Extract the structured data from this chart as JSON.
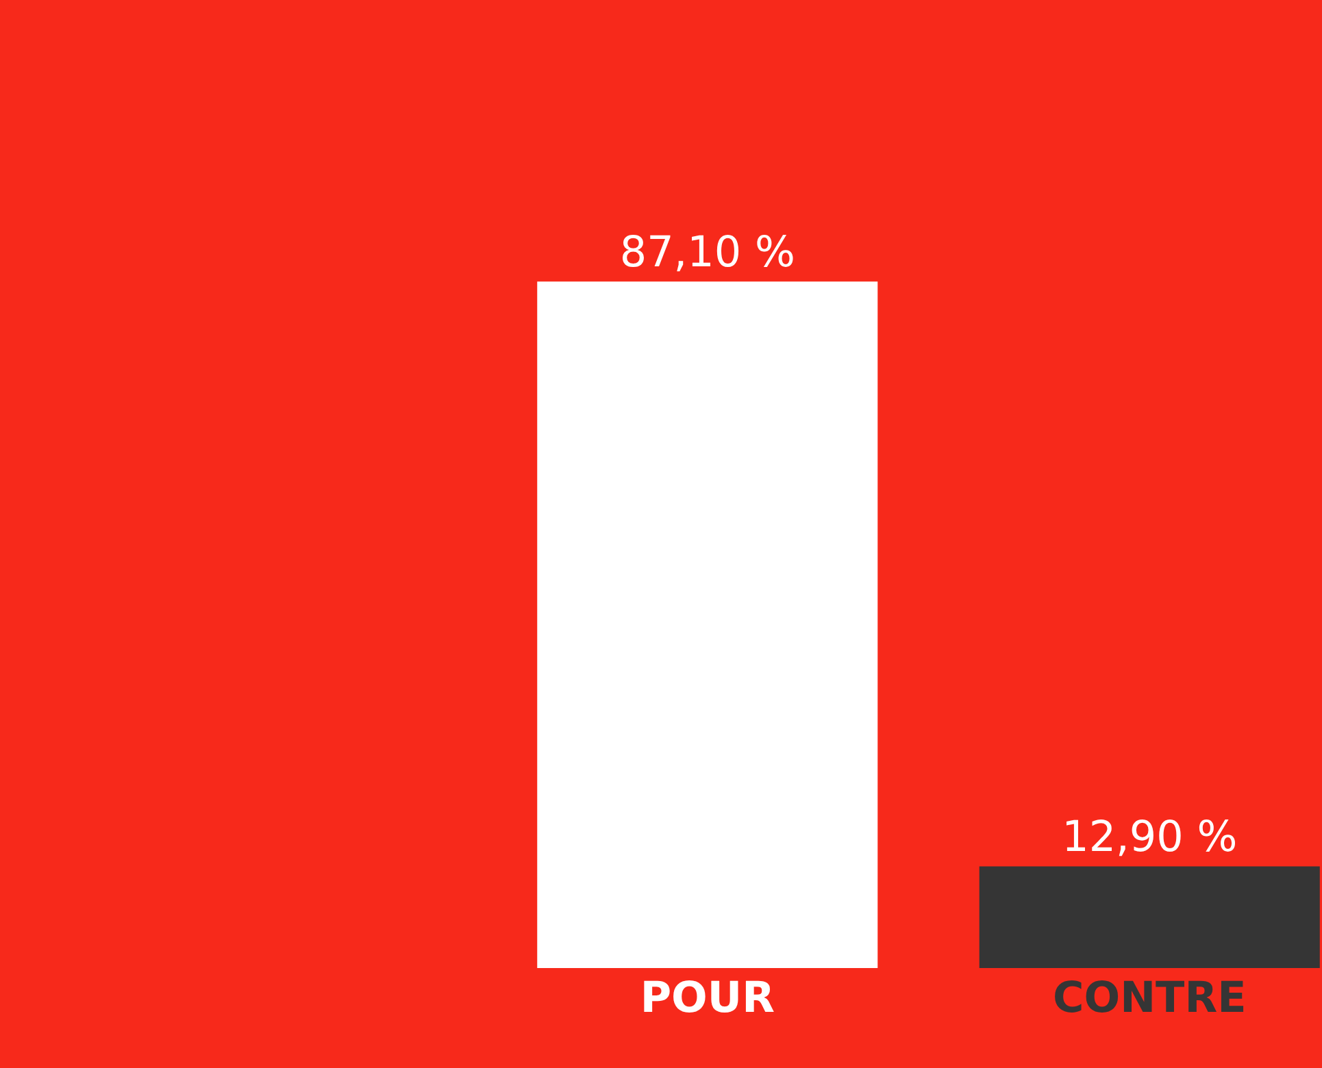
{
  "chart_data": {
    "type": "bar",
    "categories": [
      "POUR",
      "CONTRE"
    ],
    "values": [
      87.1,
      12.9
    ],
    "colors": [
      "#ffffff",
      "#353535"
    ],
    "value_labels": [
      "87,10 %",
      "12,90 %"
    ]
  }
}
